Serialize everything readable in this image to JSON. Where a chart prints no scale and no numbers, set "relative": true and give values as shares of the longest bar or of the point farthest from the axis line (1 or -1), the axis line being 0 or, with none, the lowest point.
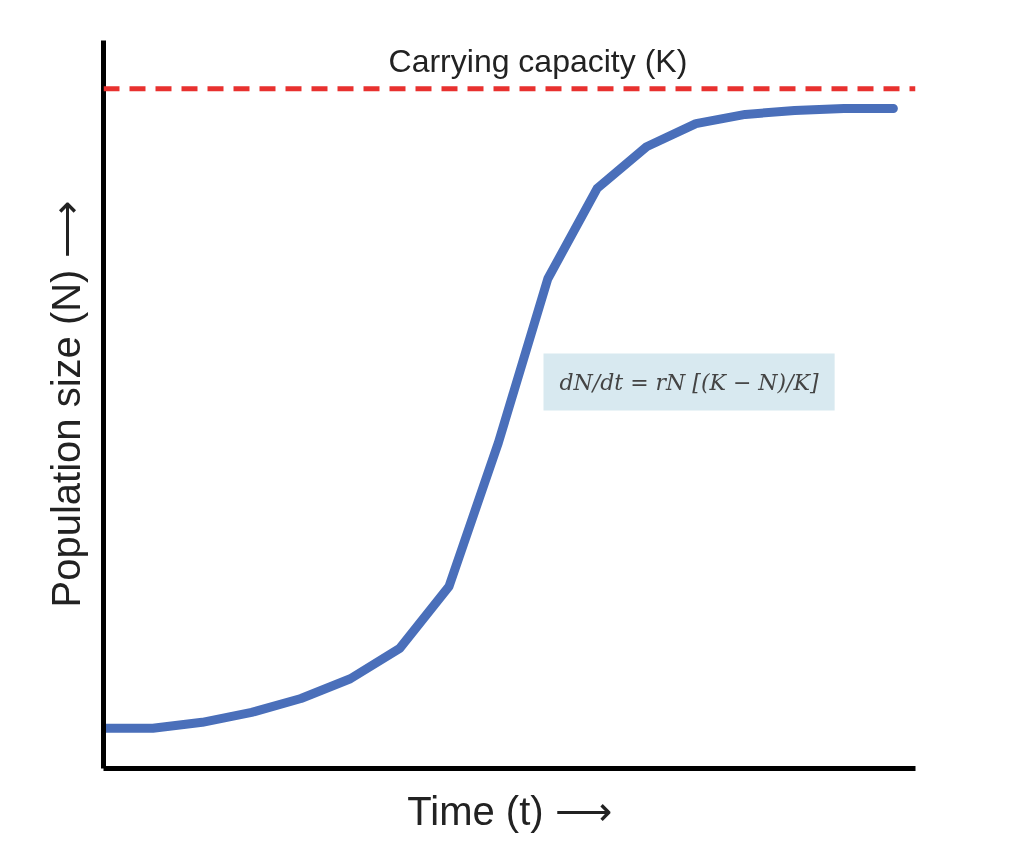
{
  "chart_data": {
    "type": "line",
    "relative": true,
    "xlabel": "Time (t) ⟶",
    "ylabel": "Population size (N) ⟶",
    "categories": [
      null,
      null,
      null,
      null,
      null,
      null,
      null,
      null,
      null,
      null,
      null,
      null,
      null,
      null,
      null,
      null,
      null
    ],
    "series": [
      {
        "color": "#4a6fba",
        "values": [
          0.061,
          0.061,
          0.07,
          0.085,
          0.106,
          0.136,
          0.182,
          0.276,
          0.494,
          0.742,
          0.879,
          0.942,
          0.977,
          0.991,
          0.997,
          1,
          1
        ]
      }
    ],
    "ref_lines": [
      {
        "axis": "y",
        "value": 1.03,
        "label": "Carrying capacity (K)",
        "color": "#e8312f",
        "line_style": "dashed"
      }
    ],
    "annotations": [
      "dN/dt = rN [(K − N)/K]"
    ],
    "grid": false,
    "marker": "none",
    "line_style": "solid"
  }
}
